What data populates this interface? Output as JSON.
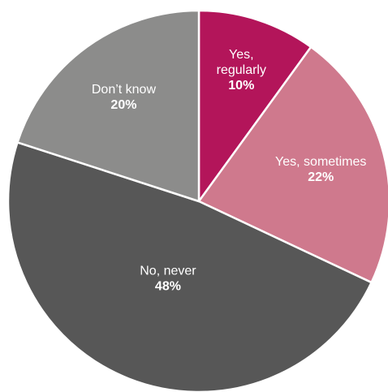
{
  "chart_data": {
    "type": "pie",
    "title": "",
    "start_angle_deg": 0,
    "direction": "clockwise",
    "slices": [
      {
        "label_lines": [
          "Yes,",
          "regularly"
        ],
        "value": 10,
        "value_label": "10%",
        "color": "#b3155a"
      },
      {
        "label_lines": [
          "Yes, sometimes"
        ],
        "value": 22,
        "value_label": "22%",
        "color": "#cf798d"
      },
      {
        "label_lines": [
          "No, never"
        ],
        "value": 48,
        "value_label": "48%",
        "color": "#575757"
      },
      {
        "label_lines": [
          "Don’t know"
        ],
        "value": 20,
        "value_label": "20%",
        "color": "#8c8c8b"
      }
    ]
  }
}
